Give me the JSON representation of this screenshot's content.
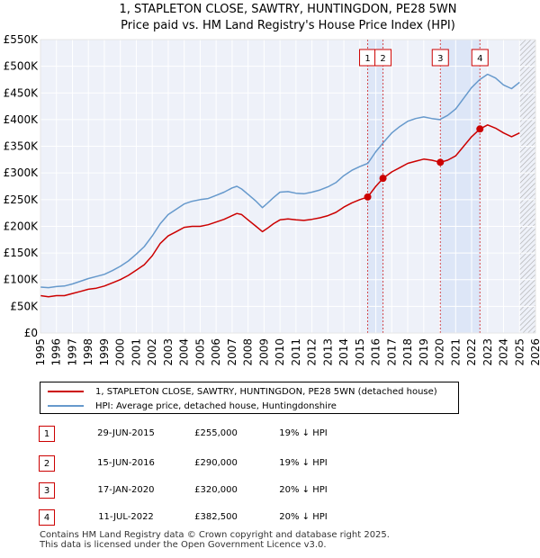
{
  "chart_data": {
    "type": "line",
    "title": "1, STAPLETON CLOSE, SAWTRY, HUNTINGDON, PE28 5WN",
    "subtitle": "Price paid vs. HM Land Registry's House Price Index (HPI)",
    "xlabel": "",
    "ylabel": "",
    "xlim": [
      1995,
      2026
    ],
    "ylim": [
      0,
      550000
    ],
    "y_ticks": [
      {
        "value": 0,
        "label": "£0"
      },
      {
        "value": 50000,
        "label": "£50K"
      },
      {
        "value": 100000,
        "label": "£100K"
      },
      {
        "value": 150000,
        "label": "£150K"
      },
      {
        "value": 200000,
        "label": "£200K"
      },
      {
        "value": 250000,
        "label": "£250K"
      },
      {
        "value": 300000,
        "label": "£300K"
      },
      {
        "value": 350000,
        "label": "£350K"
      },
      {
        "value": 400000,
        "label": "£400K"
      },
      {
        "value": 450000,
        "label": "£450K"
      },
      {
        "value": 500000,
        "label": "£500K"
      },
      {
        "value": 550000,
        "label": "£550K"
      }
    ],
    "x_ticks": [
      "1995",
      "1996",
      "1997",
      "1998",
      "1999",
      "2000",
      "2001",
      "2002",
      "2003",
      "2004",
      "2005",
      "2006",
      "2007",
      "2008",
      "2009",
      "2010",
      "2011",
      "2012",
      "2013",
      "2014",
      "2015",
      "2016",
      "2017",
      "2018",
      "2019",
      "2020",
      "2021",
      "2022",
      "2023",
      "2024",
      "2025",
      "2026"
    ],
    "grid": true,
    "data_end": 2025.0,
    "series": [
      {
        "name": "1, STAPLETON CLOSE, SAWTRY, HUNTINGDON, PE28 5WN (detached house)",
        "color": "#cc0000",
        "x": [
          1995,
          1995.5,
          1996,
          1996.5,
          1997,
          1997.5,
          1998,
          1998.5,
          1999,
          1999.5,
          2000,
          2000.5,
          2001,
          2001.5,
          2002,
          2002.5,
          2003,
          2003.5,
          2004,
          2004.5,
          2005,
          2005.5,
          2006,
          2006.5,
          2007,
          2007.3,
          2007.6,
          2008,
          2008.5,
          2008.9,
          2009.2,
          2009.6,
          2010,
          2010.5,
          2011,
          2011.5,
          2012,
          2012.5,
          2013,
          2013.5,
          2014,
          2014.5,
          2015,
          2015.49,
          2016,
          2016.45,
          2017,
          2017.5,
          2018,
          2018.5,
          2019,
          2019.5,
          2020.04,
          2020.5,
          2021,
          2021.5,
          2022,
          2022.52,
          2023,
          2023.5,
          2024,
          2024.5,
          2025
        ],
        "values": [
          70000,
          68000,
          70000,
          70000,
          74000,
          78000,
          82000,
          84000,
          88000,
          94000,
          100000,
          108000,
          118000,
          128000,
          145000,
          168000,
          182000,
          190000,
          198000,
          200000,
          200000,
          203000,
          208000,
          213000,
          220000,
          224000,
          222000,
          212000,
          200000,
          190000,
          196000,
          205000,
          212000,
          214000,
          212000,
          211000,
          213000,
          216000,
          220000,
          226000,
          236000,
          244000,
          250000,
          255000,
          275000,
          290000,
          302000,
          310000,
          318000,
          322000,
          326000,
          324000,
          320000,
          324000,
          332000,
          350000,
          368000,
          382500,
          390000,
          384000,
          375000,
          368000,
          375000
        ]
      },
      {
        "name": "HPI: Average price, detached house, Huntingdonshire",
        "color": "#6699cc",
        "x": [
          1995,
          1995.5,
          1996,
          1996.5,
          1997,
          1997.5,
          1998,
          1998.5,
          1999,
          1999.5,
          2000,
          2000.5,
          2001,
          2001.5,
          2002,
          2002.5,
          2003,
          2003.5,
          2004,
          2004.5,
          2005,
          2005.5,
          2006,
          2006.5,
          2007,
          2007.3,
          2007.6,
          2008,
          2008.5,
          2008.9,
          2009.2,
          2009.6,
          2010,
          2010.5,
          2011,
          2011.5,
          2012,
          2012.5,
          2013,
          2013.5,
          2014,
          2014.5,
          2015,
          2015.5,
          2016,
          2016.5,
          2017,
          2017.5,
          2018,
          2018.5,
          2019,
          2019.5,
          2020,
          2020.5,
          2021,
          2021.5,
          2022,
          2022.5,
          2023,
          2023.5,
          2024,
          2024.5,
          2025
        ],
        "values": [
          86000,
          85000,
          87000,
          88000,
          92000,
          97000,
          102000,
          106000,
          110000,
          117000,
          125000,
          135000,
          148000,
          162000,
          182000,
          205000,
          222000,
          232000,
          242000,
          247000,
          250000,
          252000,
          258000,
          264000,
          272000,
          275000,
          270000,
          260000,
          247000,
          235000,
          243000,
          254000,
          264000,
          265000,
          262000,
          261000,
          264000,
          268000,
          274000,
          282000,
          295000,
          305000,
          312000,
          318000,
          340000,
          358000,
          375000,
          387000,
          397000,
          402000,
          405000,
          402000,
          400000,
          408000,
          420000,
          440000,
          460000,
          475000,
          485000,
          478000,
          465000,
          458000,
          470000
        ]
      }
    ],
    "annotations": [
      {
        "label": "1",
        "x": 2015.49,
        "y": 255000
      },
      {
        "label": "2",
        "x": 2016.45,
        "y": 290000
      },
      {
        "label": "3",
        "x": 2020.04,
        "y": 320000
      },
      {
        "label": "4",
        "x": 2022.52,
        "y": 382500
      }
    ],
    "shaded_ranges": [
      {
        "from": 2015.49,
        "to": 2016.45
      },
      {
        "from": 2020.04,
        "to": 2022.52
      }
    ]
  },
  "legend": {
    "items": [
      {
        "label": "1, STAPLETON CLOSE, SAWTRY, HUNTINGDON, PE28 5WN (detached house)",
        "color": "#cc0000"
      },
      {
        "label": "HPI: Average price, detached house, Huntingdonshire",
        "color": "#6699cc"
      }
    ]
  },
  "transactions": [
    {
      "num": "1",
      "date": "29-JUN-2015",
      "price": "£255,000",
      "hpi": "19% ↓ HPI"
    },
    {
      "num": "2",
      "date": "15-JUN-2016",
      "price": "£290,000",
      "hpi": "19% ↓ HPI"
    },
    {
      "num": "3",
      "date": "17-JAN-2020",
      "price": "£320,000",
      "hpi": "20% ↓ HPI"
    },
    {
      "num": "4",
      "date": "11-JUL-2022",
      "price": "£382,500",
      "hpi": "20% ↓ HPI"
    }
  ],
  "footer": {
    "line1": "Contains HM Land Registry data © Crown copyright and database right 2025.",
    "line2": "This data is licensed under the Open Government Licence v3.0."
  },
  "colors": {
    "plot_bg": "#eef1f9",
    "grid": "#ffffff",
    "shade": "#dde6f7",
    "marker": "#cc0000"
  }
}
